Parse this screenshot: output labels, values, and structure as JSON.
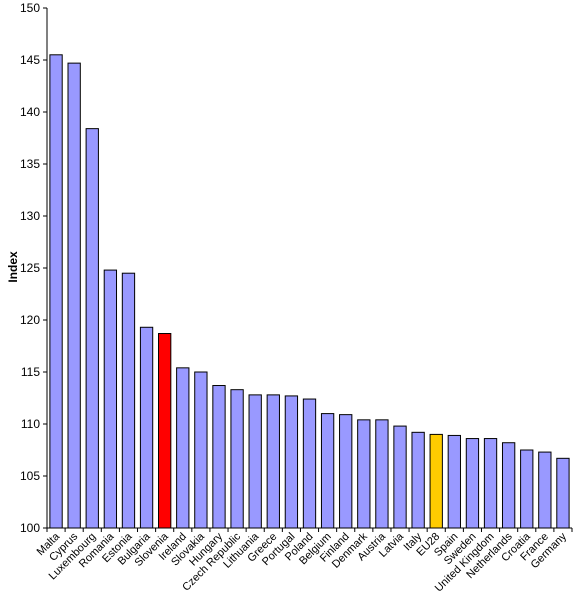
{
  "chart_data": {
    "type": "bar",
    "title": "",
    "xlabel": "",
    "ylabel": "Index",
    "ylim": [
      100,
      150
    ],
    "yticks": [
      100,
      105,
      110,
      115,
      120,
      125,
      130,
      135,
      140,
      145,
      150
    ],
    "grid": false,
    "legend": "none",
    "colors": {
      "default": "#9999ff",
      "highlight_slovenia": "#ff0000",
      "highlight_eu28": "#ffcc00",
      "bar_outline": "#000000",
      "axis": "#000000"
    },
    "categories": [
      "Malta",
      "Cyprus",
      "Luxembourg",
      "Romania",
      "Estonia",
      "Bulgaria",
      "Slovenia",
      "Ireland",
      "Slovakia",
      "Hungary",
      "Czech Republic",
      "Lithuania",
      "Greece",
      "Portugal",
      "Poland",
      "Belgium",
      "Finland",
      "Denmark",
      "Austria",
      "Latvia",
      "Italy",
      "EU28",
      "Spain",
      "Sweden",
      "United Kingdom",
      "Netherlands",
      "Croatia",
      "France",
      "Germany"
    ],
    "values": [
      145.5,
      144.7,
      138.4,
      124.8,
      124.5,
      119.3,
      118.7,
      115.4,
      115.0,
      113.7,
      113.3,
      112.8,
      112.8,
      112.7,
      112.4,
      111.0,
      110.9,
      110.4,
      110.4,
      109.8,
      109.2,
      109.0,
      108.9,
      108.6,
      108.6,
      108.2,
      107.5,
      107.3,
      106.7
    ],
    "highlights": {
      "Slovenia": "highlight_slovenia",
      "EU28": "highlight_eu28"
    }
  }
}
